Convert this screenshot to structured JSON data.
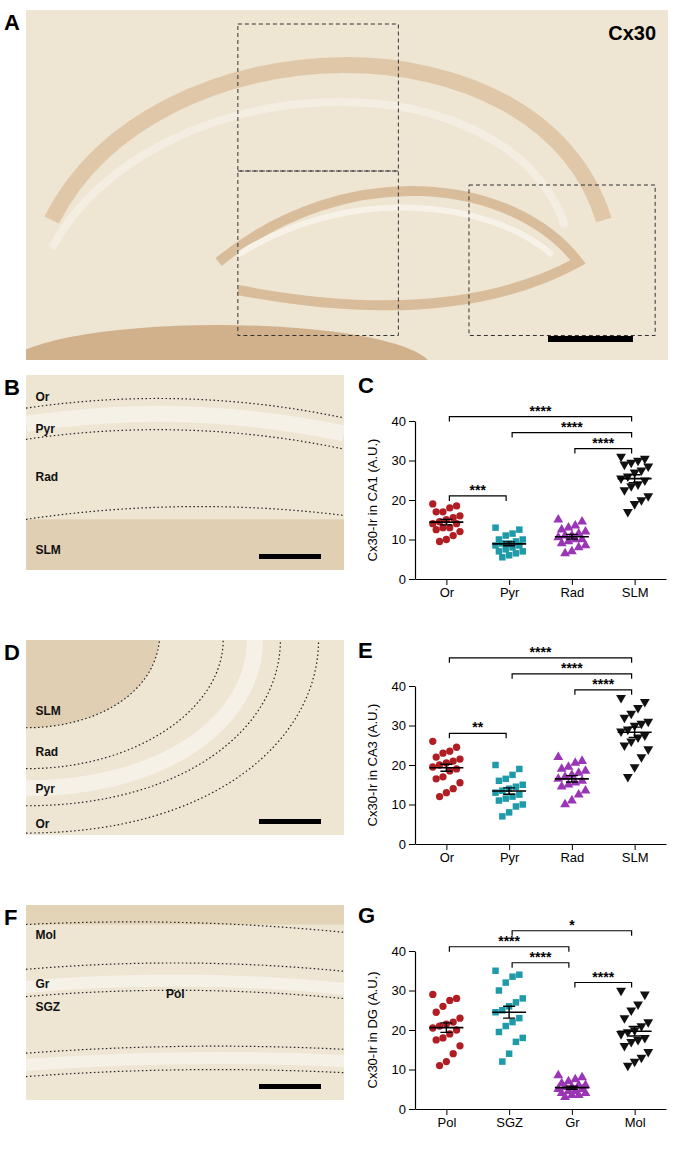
{
  "chart_data": [
    {
      "type": "scatter",
      "panel": "C",
      "ylabel": "Cx30-Ir in CA1 (A.U.)",
      "categories": [
        "Or",
        "Pyr",
        "Rad",
        "SLM"
      ],
      "colors": [
        "#b01e23",
        "#1e9aa8",
        "#9a36b5",
        "#111111"
      ],
      "markers": [
        "circle",
        "square",
        "triangle-up",
        "triangle-down"
      ],
      "values": [
        [
          19,
          18.5,
          18,
          17,
          17,
          16,
          15.5,
          15,
          14.5,
          14,
          14,
          13,
          13,
          12.5,
          12,
          11,
          10,
          9.5
        ],
        [
          13,
          12.5,
          11.5,
          11,
          10,
          10,
          9.5,
          9,
          9,
          8.5,
          8.5,
          8,
          7.5,
          7,
          7,
          6.5,
          6,
          5.5
        ],
        [
          15,
          14.5,
          13.5,
          13,
          12.5,
          12,
          11.5,
          11,
          11,
          10.5,
          10,
          10,
          9.5,
          9,
          8.5,
          8,
          7,
          6.5
        ],
        [
          31,
          30.5,
          30,
          29.5,
          29,
          28.5,
          27.5,
          27,
          26,
          25.5,
          25,
          24,
          23.5,
          22.5,
          21,
          20,
          19,
          17
        ]
      ],
      "mean": [
        14.4,
        8.9,
        10.7,
        25.4
      ],
      "error": [
        0.7,
        0.5,
        0.6,
        1.0
      ],
      "ylim": [
        0,
        40
      ],
      "yticks": [
        0,
        10,
        20,
        30,
        40
      ],
      "grid": false,
      "annotations": [
        {
          "from": 0,
          "to": 1,
          "label": "***"
        },
        {
          "from": 2,
          "to": 3,
          "label": "****"
        },
        {
          "from": 1,
          "to": 3,
          "label": "****"
        },
        {
          "from": 0,
          "to": 3,
          "label": "****"
        }
      ]
    },
    {
      "type": "scatter",
      "panel": "E",
      "ylabel": "Cx30-Ir in CA3 (A.U.)",
      "categories": [
        "Or",
        "Pyr",
        "Rad",
        "SLM"
      ],
      "colors": [
        "#b01e23",
        "#1e9aa8",
        "#9a36b5",
        "#111111"
      ],
      "markers": [
        "circle",
        "square",
        "triangle-up",
        "triangle-down"
      ],
      "values": [
        [
          26,
          24.5,
          23.5,
          23,
          22,
          21.5,
          21,
          20.5,
          20,
          19.5,
          19,
          18.5,
          17,
          16.5,
          15.5,
          14,
          13,
          12
        ],
        [
          20,
          19,
          17.5,
          16.5,
          16,
          15,
          14.5,
          14,
          13.5,
          13,
          12.5,
          12,
          11.5,
          11,
          10,
          9.5,
          8,
          7
        ],
        [
          22,
          21,
          20.5,
          19.5,
          19,
          18.5,
          18,
          17.5,
          17,
          16.5,
          16,
          15.5,
          15,
          14.5,
          13.5,
          12.5,
          11,
          10
        ],
        [
          37,
          36,
          34.5,
          33,
          32,
          31,
          30.5,
          30,
          29,
          28.5,
          27.5,
          27,
          26,
          25,
          24,
          22,
          19.5,
          17
        ]
      ],
      "mean": [
        19.3,
        13.4,
        16.5,
        28.3
      ],
      "error": [
        0.9,
        0.8,
        0.8,
        1.3
      ],
      "ylim": [
        0,
        40
      ],
      "yticks": [
        0,
        10,
        20,
        30,
        40
      ],
      "grid": false,
      "annotations": [
        {
          "from": 0,
          "to": 1,
          "label": "**"
        },
        {
          "from": 2,
          "to": 3,
          "label": "****"
        },
        {
          "from": 1,
          "to": 3,
          "label": "****"
        },
        {
          "from": 0,
          "to": 3,
          "label": "****"
        }
      ]
    },
    {
      "type": "scatter",
      "panel": "G",
      "ylabel": "Cx30-Ir in DG (A.U.)",
      "categories": [
        "Pol",
        "SGZ",
        "Gr",
        "Mol"
      ],
      "colors": [
        "#b01e23",
        "#1e9aa8",
        "#9a36b5",
        "#111111"
      ],
      "markers": [
        "circle",
        "square",
        "triangle-up",
        "triangle-down"
      ],
      "values": [
        [
          29,
          28,
          27.5,
          26,
          24.5,
          23,
          22,
          21.5,
          21,
          20.5,
          20,
          19,
          18,
          17.5,
          16,
          14,
          12,
          11
        ],
        [
          35,
          34,
          33.5,
          32,
          30,
          28,
          27,
          26,
          25,
          24.5,
          23,
          22,
          21,
          19.5,
          18,
          17,
          14,
          12
        ],
        [
          8.5,
          8,
          7.5,
          7,
          6.5,
          6,
          6,
          5.5,
          5.5,
          5,
          5,
          4.5,
          4.5,
          4,
          4,
          3.5,
          3.5,
          3
        ],
        [
          30,
          29,
          26.5,
          25,
          23,
          22,
          21,
          20,
          19.5,
          19,
          18,
          17.5,
          17,
          16,
          14.5,
          13,
          12,
          11
        ]
      ],
      "mean": [
        20.6,
        24.5,
        5.4,
        19.7
      ],
      "error": [
        1.2,
        1.5,
        0.4,
        1.2
      ],
      "ylim": [
        0,
        40
      ],
      "yticks": [
        0,
        10,
        20,
        30,
        40
      ],
      "grid": false,
      "annotations": [
        {
          "from": 2,
          "to": 3,
          "label": "****"
        },
        {
          "from": 1,
          "to": 2,
          "label": "****"
        },
        {
          "from": 0,
          "to": 2,
          "label": "****"
        },
        {
          "from": 1,
          "to": 3,
          "label": "*"
        }
      ]
    }
  ],
  "images": [
    {
      "panel": "A",
      "label": "Cx30"
    },
    {
      "panel": "B",
      "regions": [
        "Or",
        "Pyr",
        "Rad",
        "SLM"
      ]
    },
    {
      "panel": "D",
      "regions": [
        "SLM",
        "Rad",
        "Pyr",
        "Or"
      ]
    },
    {
      "panel": "F",
      "regions": [
        "Mol",
        "Gr",
        "SGZ",
        "Pol"
      ]
    }
  ]
}
